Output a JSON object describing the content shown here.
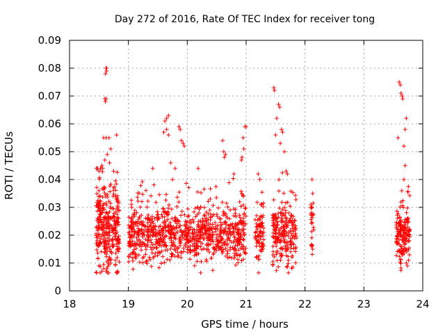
{
  "chart_data": {
    "type": "scatter",
    "title": "Day 272 of 2016, Rate Of TEC Index for receiver tong",
    "xlabel": "GPS time / hours",
    "ylabel": "ROTI / TECUs",
    "xlim": [
      18,
      24
    ],
    "ylim": [
      0,
      0.09
    ],
    "xticks": [
      "18",
      "19",
      "20",
      "21",
      "22",
      "23",
      "24"
    ],
    "yticks": [
      "0",
      "0.01",
      "0.02",
      "0.03",
      "0.04",
      "0.05",
      "0.06",
      "0.07",
      "0.08",
      "0.09"
    ],
    "grid": true,
    "marker": "+",
    "color": "#ff0000",
    "clusters": [
      {
        "x_range": [
          18.45,
          18.85
        ],
        "y_median": 0.022,
        "y_spread": 0.009,
        "density": 320
      },
      {
        "x_range": [
          19.0,
          21.0
        ],
        "y_median": 0.02,
        "y_spread": 0.006,
        "density": 900
      },
      {
        "x_range": [
          21.15,
          21.3
        ],
        "y_median": 0.021,
        "y_spread": 0.006,
        "density": 80
      },
      {
        "x_range": [
          21.45,
          21.85
        ],
        "y_median": 0.02,
        "y_spread": 0.007,
        "density": 220
      },
      {
        "x_range": [
          22.1,
          22.15
        ],
        "y_median": 0.024,
        "y_spread": 0.006,
        "density": 20
      },
      {
        "x_range": [
          23.55,
          23.78
        ],
        "y_median": 0.02,
        "y_spread": 0.006,
        "density": 160
      }
    ],
    "points": [
      [
        18.62,
        0.08
      ],
      [
        18.63,
        0.079
      ],
      [
        18.61,
        0.078
      ],
      [
        18.63,
        0.08
      ],
      [
        18.6,
        0.069
      ],
      [
        18.61,
        0.068
      ],
      [
        18.62,
        0.069
      ],
      [
        18.58,
        0.055
      ],
      [
        18.62,
        0.055
      ],
      [
        18.67,
        0.055
      ],
      [
        18.8,
        0.056
      ],
      [
        18.7,
        0.051
      ],
      [
        18.64,
        0.049
      ],
      [
        18.5,
        0.043
      ],
      [
        18.55,
        0.045
      ],
      [
        18.6,
        0.047
      ],
      [
        18.68,
        0.046
      ],
      [
        18.75,
        0.043
      ],
      [
        18.48,
        0.044
      ],
      [
        18.5,
        0.009
      ],
      [
        18.55,
        0.007
      ],
      [
        18.58,
        0.008
      ],
      [
        18.7,
        0.01
      ],
      [
        18.78,
        0.011
      ],
      [
        19.65,
        0.062
      ],
      [
        19.68,
        0.063
      ],
      [
        19.62,
        0.061
      ],
      [
        19.65,
        0.058
      ],
      [
        19.6,
        0.057
      ],
      [
        19.68,
        0.056
      ],
      [
        19.88,
        0.058
      ],
      [
        19.86,
        0.059
      ],
      [
        19.9,
        0.054
      ],
      [
        19.93,
        0.053
      ],
      [
        19.95,
        0.052
      ],
      [
        19.75,
        0.04
      ],
      [
        19.72,
        0.046
      ],
      [
        20.6,
        0.054
      ],
      [
        20.62,
        0.05
      ],
      [
        20.65,
        0.049
      ],
      [
        20.63,
        0.048
      ],
      [
        20.98,
        0.059
      ],
      [
        21.0,
        0.059
      ],
      [
        20.95,
        0.055
      ],
      [
        20.93,
        0.048
      ],
      [
        20.92,
        0.047
      ],
      [
        20.96,
        0.051
      ],
      [
        21.47,
        0.073
      ],
      [
        21.48,
        0.072
      ],
      [
        21.55,
        0.067
      ],
      [
        21.57,
        0.066
      ],
      [
        21.6,
        0.058
      ],
      [
        21.62,
        0.057
      ],
      [
        21.52,
        0.062
      ],
      [
        21.5,
        0.056
      ],
      [
        21.58,
        0.053
      ],
      [
        21.65,
        0.05
      ],
      [
        21.68,
        0.043
      ],
      [
        21.7,
        0.042
      ],
      [
        22.12,
        0.04
      ],
      [
        22.13,
        0.035
      ],
      [
        22.1,
        0.031
      ],
      [
        22.12,
        0.03
      ],
      [
        22.11,
        0.016
      ],
      [
        22.13,
        0.015
      ],
      [
        23.6,
        0.075
      ],
      [
        23.62,
        0.074
      ],
      [
        23.63,
        0.071
      ],
      [
        23.65,
        0.07
      ],
      [
        23.66,
        0.069
      ],
      [
        23.58,
        0.055
      ],
      [
        23.72,
        0.062
      ],
      [
        23.7,
        0.058
      ],
      [
        23.68,
        0.052
      ],
      [
        23.7,
        0.045
      ],
      [
        23.68,
        0.04
      ],
      [
        23.72,
        0.01
      ],
      [
        23.74,
        0.009
      ],
      [
        23.76,
        0.011
      ]
    ]
  }
}
